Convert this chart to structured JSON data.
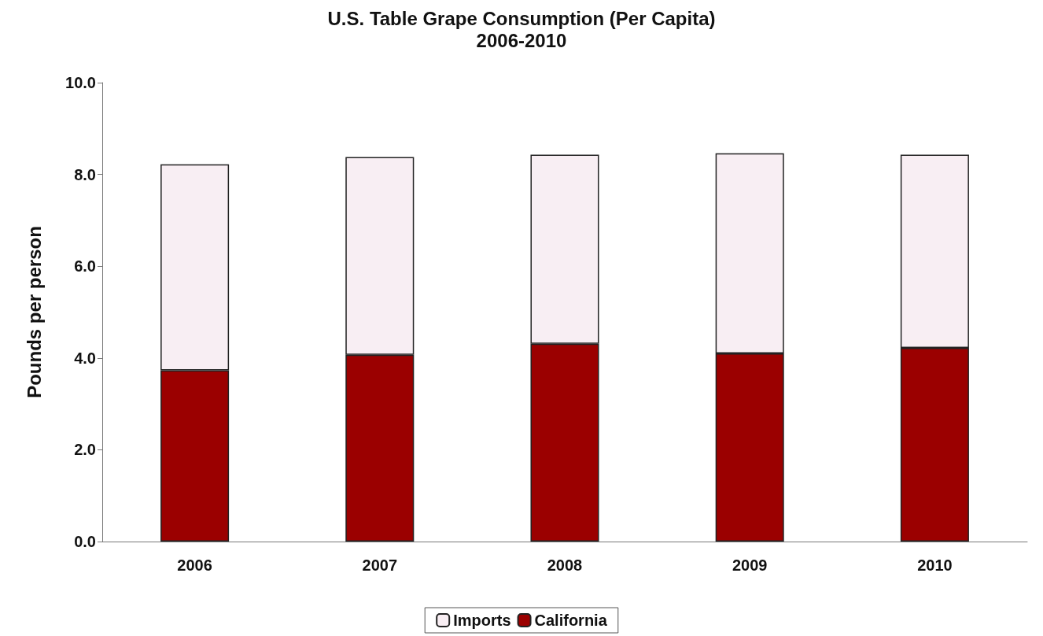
{
  "chart_data": {
    "type": "bar",
    "title": "U.S. Table Grape Consumption (Per Capita)",
    "subtitle": "2006-2010",
    "ylabel": "Pounds per person",
    "categories": [
      "2006",
      "2007",
      "2008",
      "2009",
      "2010"
    ],
    "series": [
      {
        "name": "California",
        "color": "#9b0000",
        "values": [
          3.73,
          4.07,
          4.31,
          4.1,
          4.22
        ]
      },
      {
        "name": "Imports",
        "color": "#f8eef3",
        "values": [
          4.49,
          4.31,
          4.12,
          4.36,
          4.21
        ]
      }
    ],
    "stacked": true,
    "ylim": [
      0,
      10
    ],
    "yticks": [
      {
        "value": 0,
        "label": "0.0"
      },
      {
        "value": 2,
        "label": "2.0"
      },
      {
        "value": 4,
        "label": "4.0"
      },
      {
        "value": 6,
        "label": "6.0"
      },
      {
        "value": 8,
        "label": "8.0"
      },
      {
        "value": 10,
        "label": "10.0"
      }
    ],
    "grid": false,
    "legend": "bottom"
  }
}
